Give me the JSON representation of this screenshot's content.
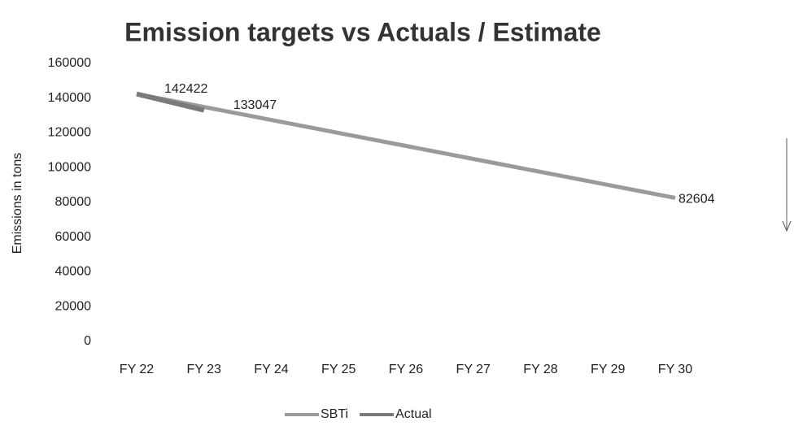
{
  "chart_data": {
    "type": "line",
    "title": "Emission targets vs Actuals / Estimate",
    "y_label": "Emissions in tons",
    "categories": [
      "FY 22",
      "FY 23",
      "FY 24",
      "FY 25",
      "FY 26",
      "FY 27",
      "FY 28",
      "FY 29",
      "FY 30"
    ],
    "series": [
      {
        "name": "SBTi",
        "color": "#9a9a9a",
        "values": [
          142422,
          134945,
          127468,
          119990,
          112513,
          105036,
          97559,
          90081,
          82604
        ]
      },
      {
        "name": "Actual",
        "color": "#7a7a7a",
        "values": [
          142422,
          133047,
          null,
          null,
          null,
          null,
          null,
          null,
          null
        ]
      }
    ],
    "ylim": [
      0,
      160000
    ],
    "yticks": [
      0,
      20000,
      40000,
      60000,
      80000,
      100000,
      120000,
      140000,
      160000
    ],
    "grid": false,
    "legend": "bottom"
  }
}
